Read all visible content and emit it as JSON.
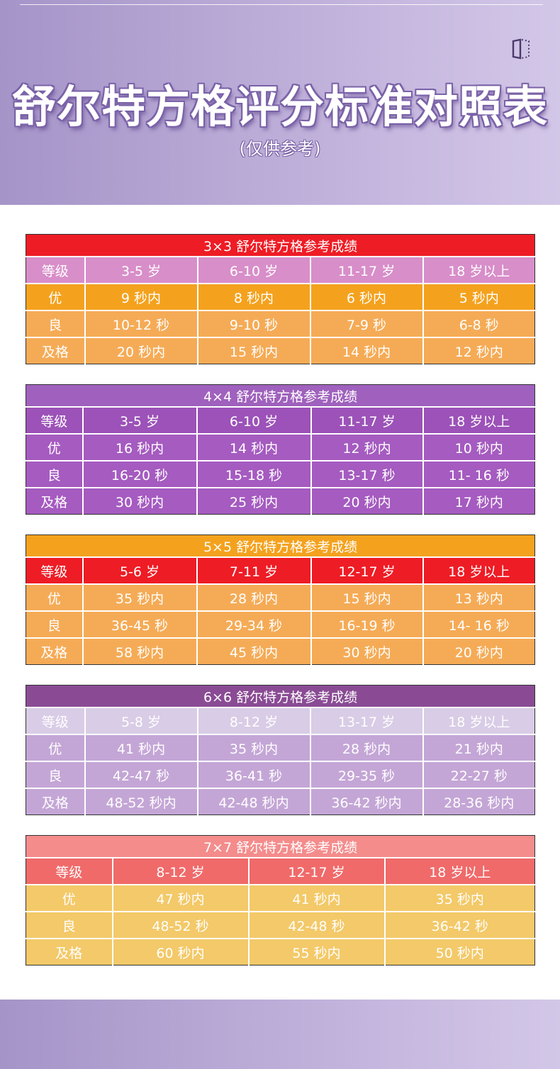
{
  "header": {
    "title": "舒尔特方格评分标准对照表",
    "subtitle": "(仅供参考)",
    "icon": "book-icon"
  },
  "tables": [
    {
      "caption": "3×3 舒尔特方格参考成绩",
      "header": [
        "等级",
        "3-5 岁",
        "6-10 岁",
        "11-17 岁",
        "18 岁以上"
      ],
      "rows": [
        [
          "优",
          "9 秒内",
          "8 秒内",
          "6 秒内",
          "5 秒内"
        ],
        [
          "良",
          "10-12 秒",
          "9-10 秒",
          "7-9 秒",
          "6-8 秒"
        ],
        [
          "及格",
          "20 秒内",
          "15 秒内",
          "14 秒内",
          "12 秒内"
        ]
      ]
    },
    {
      "caption": "4×4 舒尔特方格参考成绩",
      "header": [
        "等级",
        "3-5 岁",
        "6-10 岁",
        "11-17 岁",
        "18 岁以上"
      ],
      "rows": [
        [
          "优",
          "16 秒内",
          "14 秒内",
          "12 秒内",
          "10 秒内"
        ],
        [
          "良",
          "16-20 秒",
          "15-18 秒",
          "13-17 秒",
          "11- 16 秒"
        ],
        [
          "及格",
          "30 秒内",
          "25 秒内",
          "20 秒内",
          "17 秒内"
        ]
      ]
    },
    {
      "caption": "5×5 舒尔特方格参考成绩",
      "header": [
        "等级",
        "5-6 岁",
        "7-11 岁",
        "12-17 岁",
        "18 岁以上"
      ],
      "rows": [
        [
          "优",
          "35 秒内",
          "28 秒内",
          "15 秒内",
          "13 秒内"
        ],
        [
          "良",
          "36-45 秒",
          "29-34 秒",
          "16-19 秒",
          "14- 16 秒"
        ],
        [
          "及格",
          "58 秒内",
          "45 秒内",
          "30 秒内",
          "20 秒内"
        ]
      ]
    },
    {
      "caption": "6×6 舒尔特方格参考成绩",
      "header": [
        "等级",
        "5-8 岁",
        "8-12 岁",
        "13-17 岁",
        "18 岁以上"
      ],
      "rows": [
        [
          "优",
          "41 秒内",
          "35 秒内",
          "28 秒内",
          "21 秒内"
        ],
        [
          "良",
          "42-47 秒",
          "36-41 秒",
          "29-35 秒",
          "22-27 秒"
        ],
        [
          "及格",
          "48-52 秒内",
          "42-48 秒内",
          "36-42 秒内",
          "28-36 秒内"
        ]
      ]
    },
    {
      "caption": "7×7 舒尔特方格参考成绩",
      "header": [
        "等级",
        "8-12 岁",
        "12-17 岁",
        "18 岁以上"
      ],
      "rows": [
        [
          "优",
          "47 秒内",
          "41 秒内",
          "35 秒内"
        ],
        [
          "良",
          "48-52 秒",
          "42-48 秒",
          "36-42 秒"
        ],
        [
          "及格",
          "60 秒内",
          "55 秒内",
          "50 秒内"
        ]
      ]
    }
  ],
  "colors": {
    "t1": {
      "caption": "#ee1c25",
      "header": "#d88ec9",
      "row1": "#f4a21e",
      "row2": "#f5ab56",
      "row3": "#f5ab56"
    },
    "t2": {
      "caption": "#9f61bd",
      "header": "#9c52b8",
      "row1": "#a55bc0",
      "row2": "#a55bc0",
      "row3": "#a55bc0"
    },
    "t3": {
      "caption": "#f4a21e",
      "header": "#ee1c25",
      "row1": "#f5ab56",
      "row2": "#f5ab56",
      "row3": "#f5ab56"
    },
    "t4": {
      "caption": "#8a4b94",
      "header": "#d9cce6",
      "row1": "#c4a6d6",
      "row2": "#c4a6d6",
      "row3": "#c4a6d6"
    },
    "t5": {
      "caption": "#f48c8c",
      "header": "#f06a6a",
      "row1": "#f3c969",
      "row2": "#f3c969",
      "row3": "#f3c969"
    }
  }
}
